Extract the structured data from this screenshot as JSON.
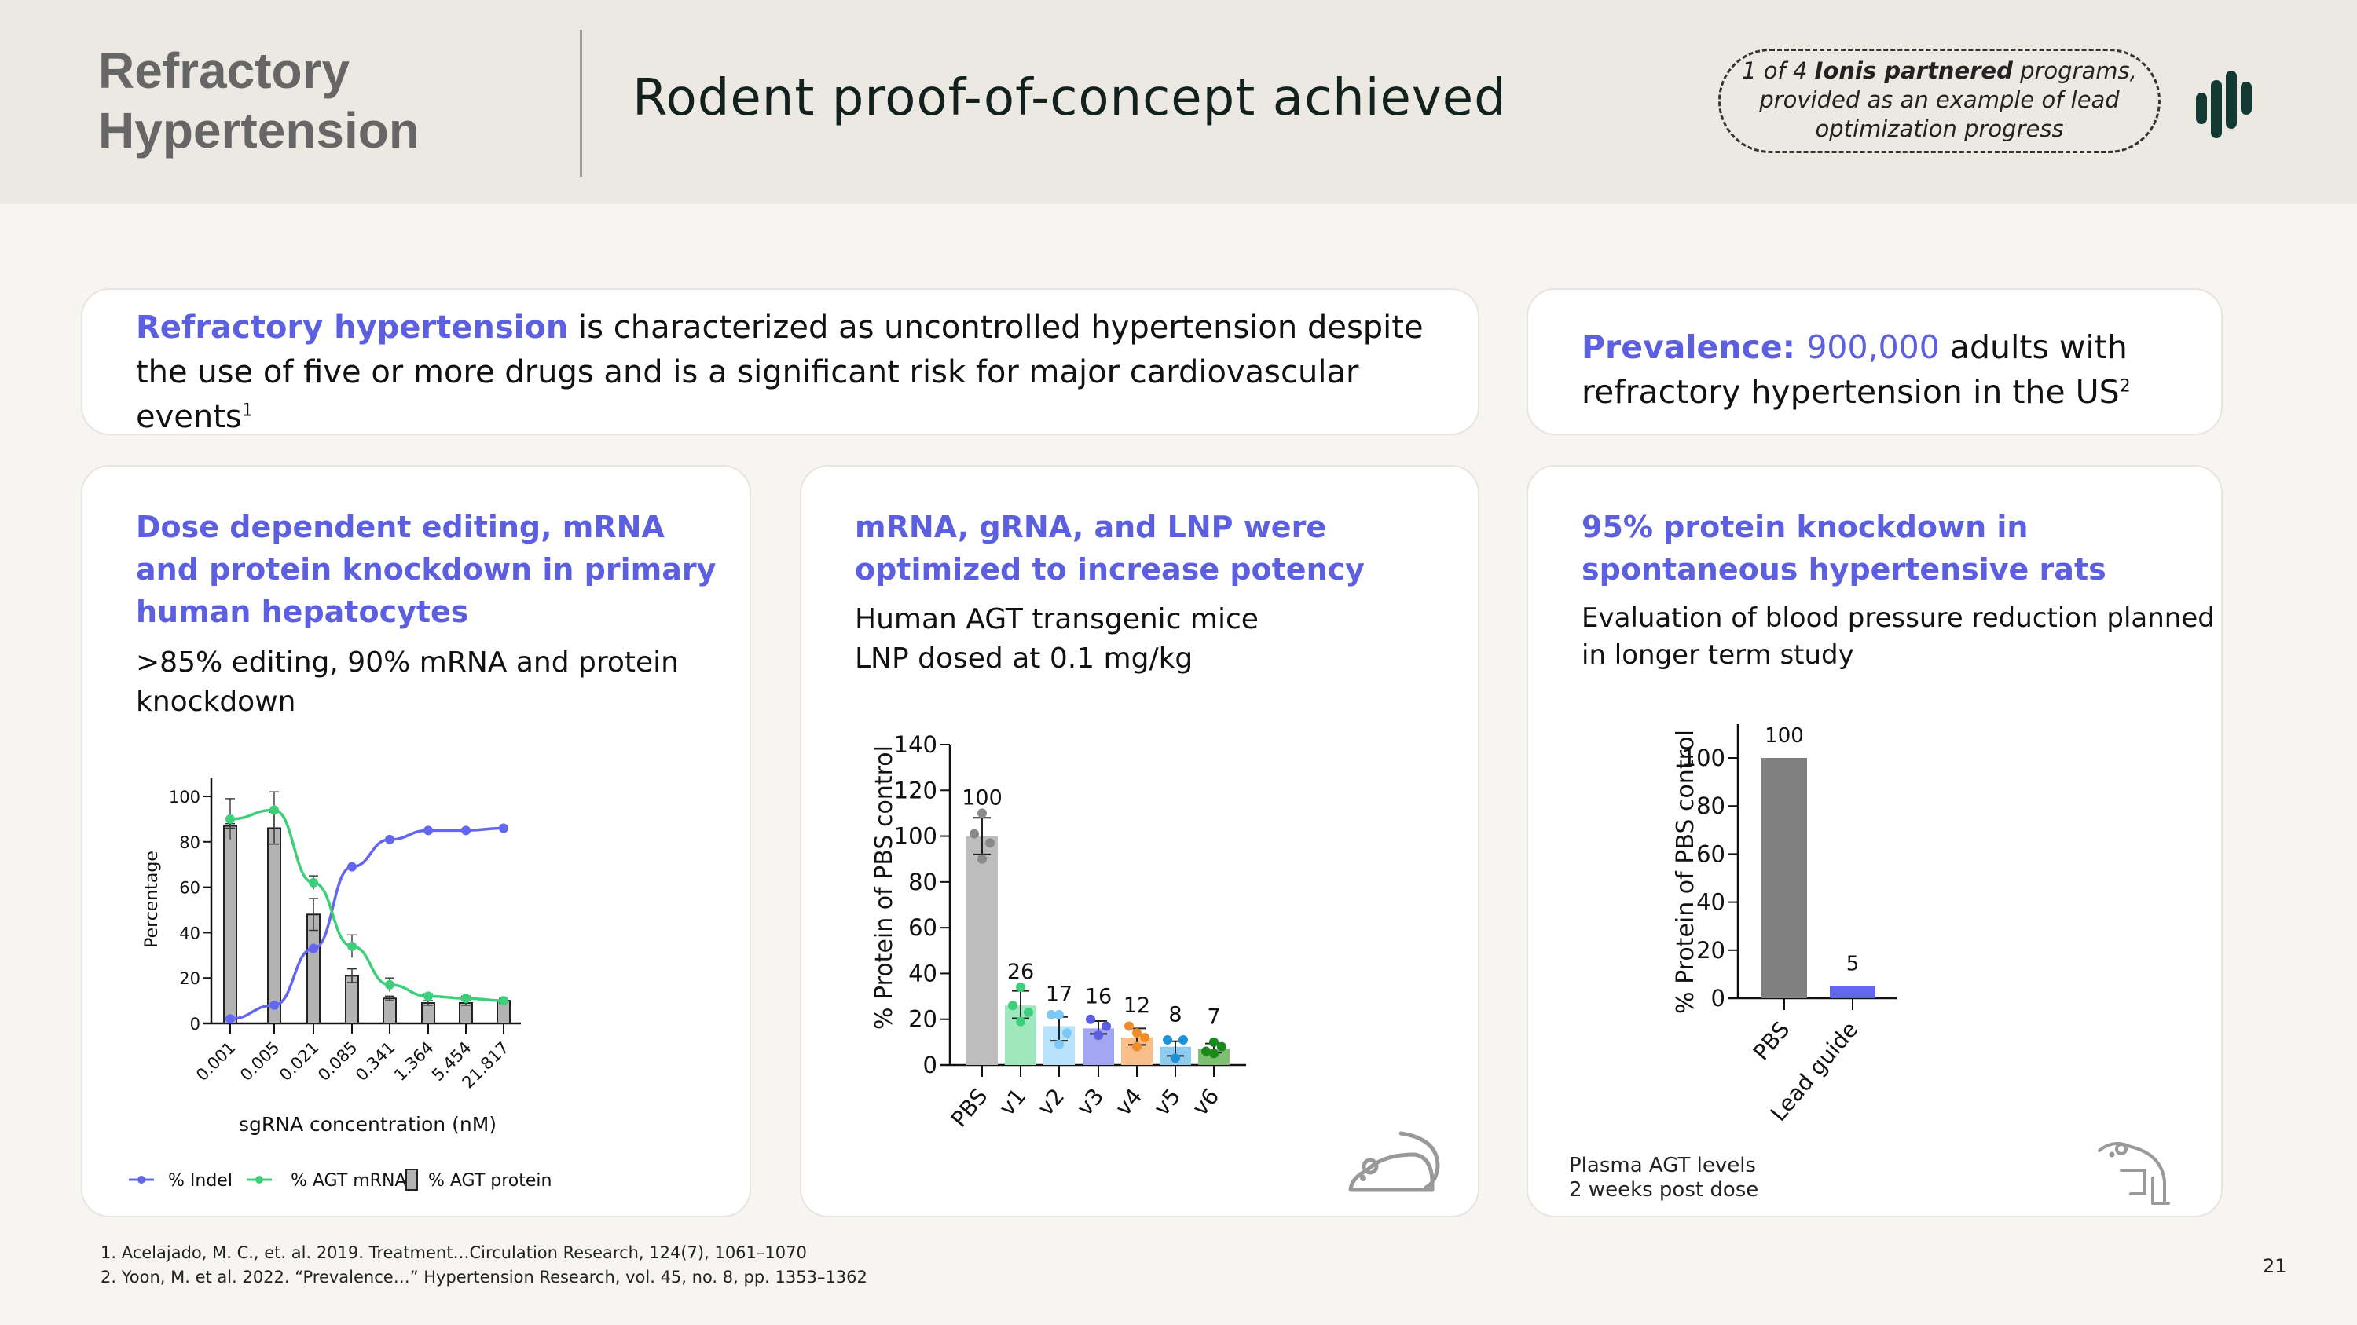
{
  "header": {
    "section_title_line1": "Refractory",
    "section_title_line2": "Hypertension",
    "page_title": "Rodent proof-of-concept achieved",
    "callout": {
      "pre": "1 of 4 ",
      "bold": "Ionis partnered",
      "post_line1": " programs,",
      "line2": "provided as an example of lead",
      "line3": "optimization progress"
    },
    "logo_icon": "bar-logo-icon"
  },
  "intro_card": {
    "highlight": "Refractory hypertension",
    "text": " is characterized as uncontrolled hypertension despite the use of five or more drugs and is a significant risk for major cardiovascular events",
    "sup": "1"
  },
  "prevalence_card": {
    "label": "Prevalence: ",
    "value": "900,000",
    "text": " adults with refractory hypertension in the US",
    "sup": "2"
  },
  "panels": [
    {
      "heading_line1": "Dose dependent editing, mRNA",
      "heading_line2": "and protein knockdown in primary",
      "heading_line3": "human hepatocytes",
      "sub_line1": ">85% editing, 90% mRNA and protein",
      "sub_line2": "knockdown"
    },
    {
      "heading_line1": "mRNA, gRNA, and LNP were",
      "heading_line2": "optimized to increase potency",
      "sub_line1": "Human AGT transgenic mice",
      "sub_line2": "LNP dosed at 0.1 mg/kg",
      "icon": "mouse-icon"
    },
    {
      "heading_line1": "95% protein knockdown in",
      "heading_line2": "spontaneous hypertensive rats",
      "sub_line1": "Evaluation of blood pressure reduction planned",
      "sub_line2": "in longer term study",
      "note_line1": "Plasma AGT levels",
      "note_line2": "2 weeks post dose",
      "icon": "rat-icon"
    }
  ],
  "footnotes": [
    "1. Acelajado, M. C., et. al. 2019. Treatment…Circulation Research, 124(7), 1061–1070",
    "2. Yoon, M. et al. 2022. “Prevalence…” Hypertension Research, vol. 45, no. 8, pp. 1353–1362"
  ],
  "page_number": "21",
  "colors": {
    "accent": "#5b5fe0",
    "indel": "#6366f1",
    "mrna": "#3ecf7a",
    "protein_bar": "#b3b3b3",
    "header_bg": "#ece8e2",
    "logo": "#123a33"
  },
  "chart_data": [
    {
      "type": "bar+line",
      "title": "Dose dependent editing, mRNA and protein knockdown in primary human hepatocytes",
      "xlabel": "sgRNA concentration (nM)",
      "ylabel": "Percentage",
      "categories": [
        "0.001",
        "0.005",
        "0.021",
        "0.085",
        "0.341",
        "1.364",
        "5.454",
        "21.817"
      ],
      "yticks": [
        0,
        20,
        40,
        60,
        80,
        100
      ],
      "ylim": [
        0,
        110
      ],
      "series": [
        {
          "name": "% Indel",
          "type": "line",
          "color": "#6366f1",
          "values": [
            2,
            8,
            33,
            69,
            81,
            85,
            85,
            86
          ]
        },
        {
          "name": "% AGT mRNA",
          "type": "line",
          "color": "#3ecf7a",
          "values": [
            90,
            94,
            62,
            34,
            17,
            12,
            11,
            10
          ],
          "errors": [
            9,
            8,
            3,
            5,
            3,
            1,
            1,
            1
          ]
        },
        {
          "name": "% AGT protein",
          "type": "bar",
          "color": "#b3b3b3",
          "values": [
            87,
            86,
            48,
            21,
            11,
            9,
            9,
            10
          ],
          "errors": [
            1,
            7,
            7,
            3,
            1,
            1,
            1,
            1
          ]
        }
      ],
      "legend": [
        "% Indel",
        "% AGT mRNA",
        "% AGT protein"
      ],
      "legend_position": "bottom",
      "grid": false
    },
    {
      "type": "bar",
      "title": "mRNA, gRNA, and LNP were optimized to increase potency",
      "xlabel": "",
      "ylabel": "% Protein of PBS control",
      "categories": [
        "PBS",
        "v1",
        "v2",
        "v3",
        "v4",
        "v5",
        "v6"
      ],
      "values": [
        100,
        26,
        17,
        16,
        12,
        8,
        7
      ],
      "data_labels": [
        "100",
        "26",
        "17",
        "16",
        "12",
        "8",
        "7"
      ],
      "bar_colors": [
        "#bdbdbd",
        "#9fe8bd",
        "#b9e3fb",
        "#a3a6f2",
        "#f9bf8a",
        "#8ecbef",
        "#7fbf72"
      ],
      "point_colors": [
        "#8a8a8a",
        "#3ecf7a",
        "#7dc9f5",
        "#5b5fe0",
        "#f28c28",
        "#1e90d8",
        "#1a8a1a"
      ],
      "yticks": [
        0,
        20,
        40,
        60,
        80,
        100,
        120,
        140
      ],
      "ylim": [
        0,
        140
      ],
      "grid": false
    },
    {
      "type": "bar",
      "title": "95% protein knockdown in spontaneous hypertensive rats",
      "xlabel": "",
      "ylabel": "% Protein of PBS control",
      "categories": [
        "PBS",
        "Lead guide"
      ],
      "values": [
        100,
        5
      ],
      "data_labels": [
        "100",
        "5"
      ],
      "bar_colors": [
        "#808080",
        "#6366f1"
      ],
      "yticks": [
        0,
        20,
        40,
        60,
        80,
        100
      ],
      "ylim": [
        0,
        115
      ],
      "note": "Plasma AGT levels 2 weeks post dose",
      "grid": false
    }
  ]
}
